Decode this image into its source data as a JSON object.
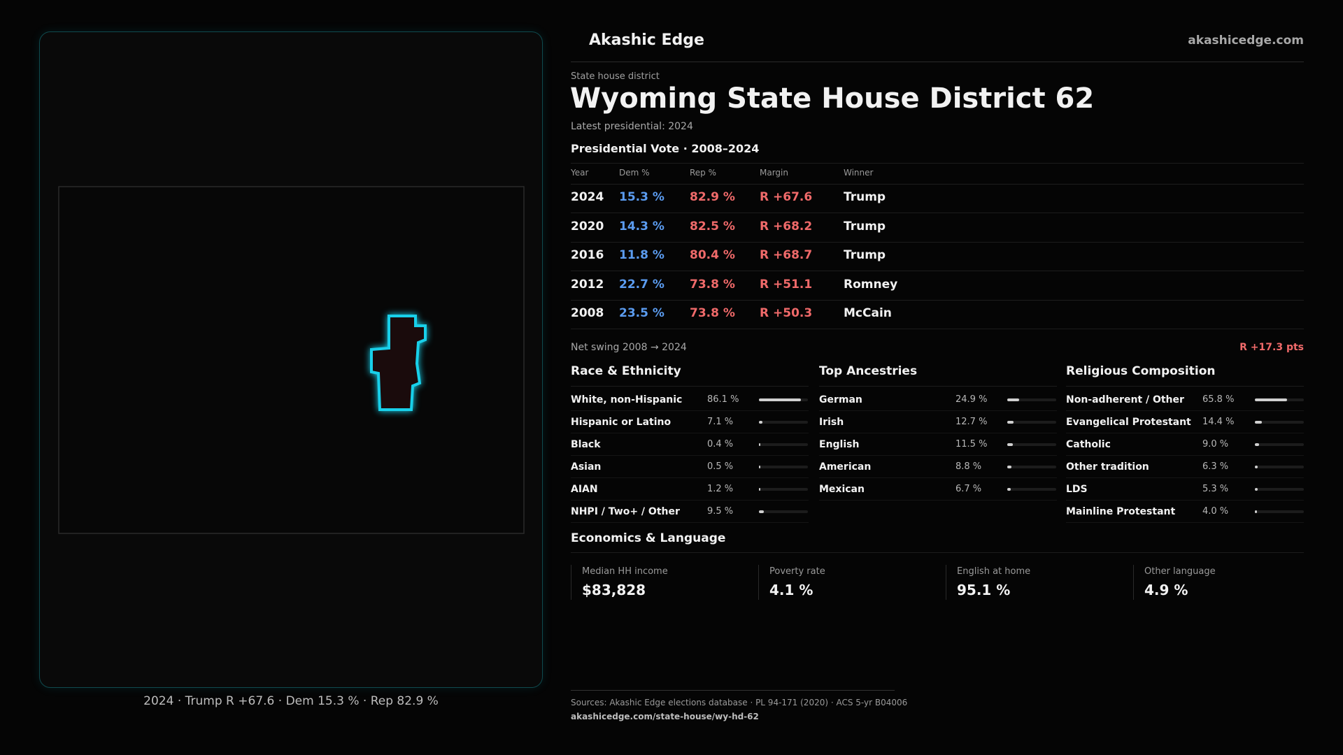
{
  "brand": {
    "name": "Akashic Edge",
    "url": "akashicedge.com"
  },
  "map": {
    "caption": "2024 · Trump R +67.6 · Dem 15.3 % · Rep 82.9 %"
  },
  "header": {
    "kicker": "State house district",
    "title": "Wyoming State House District 62",
    "subtitle": "Latest presidential: 2024"
  },
  "votes": {
    "title": "Presidential Vote · 2008–2024",
    "columns": [
      "Year",
      "Dem %",
      "Rep %",
      "Margin",
      "Winner"
    ],
    "rows": [
      [
        "2024",
        "15.3 %",
        "82.9 %",
        "R +67.6",
        "Trump"
      ],
      [
        "2020",
        "14.3 %",
        "82.5 %",
        "R +68.2",
        "Trump"
      ],
      [
        "2016",
        "11.8 %",
        "80.4 %",
        "R +68.7",
        "Trump"
      ],
      [
        "2012",
        "22.7 %",
        "73.8 %",
        "R +51.1",
        "Romney"
      ],
      [
        "2008",
        "23.5 %",
        "73.8 %",
        "R +50.3",
        "McCain"
      ]
    ]
  },
  "swing": {
    "label": "Net swing 2008 → 2024",
    "value": "R +17.3 pts"
  },
  "sections": [
    {
      "title": "Race & Ethnicity",
      "rows": [
        {
          "name": "White, non-Hispanic",
          "value": {
            "value": 86.1,
            "label": "86.1 %"
          }
        },
        {
          "name": "Hispanic or Latino",
          "value": {
            "value": 7.1,
            "label": "7.1 %"
          }
        },
        {
          "name": "Black",
          "value": {
            "value": 0.4,
            "label": "0.4 %"
          }
        },
        {
          "name": "Asian",
          "value": {
            "value": 0.5,
            "label": "0.5 %"
          }
        },
        {
          "name": "AIAN",
          "value": {
            "value": 1.2,
            "label": "1.2 %"
          }
        },
        {
          "name": "NHPI / Two+ / Other",
          "value": {
            "value": 9.5,
            "label": "9.5 %"
          }
        }
      ]
    },
    {
      "title": "Top Ancestries",
      "rows": [
        {
          "name": "German",
          "value": {
            "value": 24.9,
            "label": "24.9 %"
          }
        },
        {
          "name": "Irish",
          "value": {
            "value": 12.7,
            "label": "12.7 %"
          }
        },
        {
          "name": "English",
          "value": {
            "value": 11.5,
            "label": "11.5 %"
          }
        },
        {
          "name": "American",
          "value": {
            "value": 8.8,
            "label": "8.8 %"
          }
        },
        {
          "name": "Mexican",
          "value": {
            "value": 6.7,
            "label": "6.7 %"
          }
        }
      ]
    },
    {
      "title": "Religious Composition",
      "rows": [
        {
          "name": "Non-adherent / Other",
          "value": {
            "value": 65.8,
            "label": "65.8 %"
          }
        },
        {
          "name": "Evangelical Protestant",
          "value": {
            "value": 14.4,
            "label": "14.4 %"
          }
        },
        {
          "name": "Catholic",
          "value": {
            "value": 9.0,
            "label": "9.0 %"
          }
        },
        {
          "name": "Other tradition",
          "value": {
            "value": 6.3,
            "label": "6.3 %"
          }
        },
        {
          "name": "LDS",
          "value": {
            "value": 5.3,
            "label": "5.3 %"
          }
        },
        {
          "name": "Mainline Protestant",
          "value": {
            "value": 4.0,
            "label": "4.0 %"
          }
        }
      ]
    }
  ],
  "economics": {
    "title": "Economics & Language",
    "stats": [
      {
        "label": "Median HH income",
        "value": "$83,828"
      },
      {
        "label": "Poverty rate",
        "value": "4.1 %"
      },
      {
        "label": "English at home",
        "value": "95.1 %"
      },
      {
        "label": "Other language",
        "value": "4.9 %"
      }
    ]
  },
  "sources": [
    "Sources: Akashic Edge elections database · PL 94-171 (2020) · ACS 5-yr B04006",
    "akashicedge.com/state-house/wy-hd-62"
  ]
}
